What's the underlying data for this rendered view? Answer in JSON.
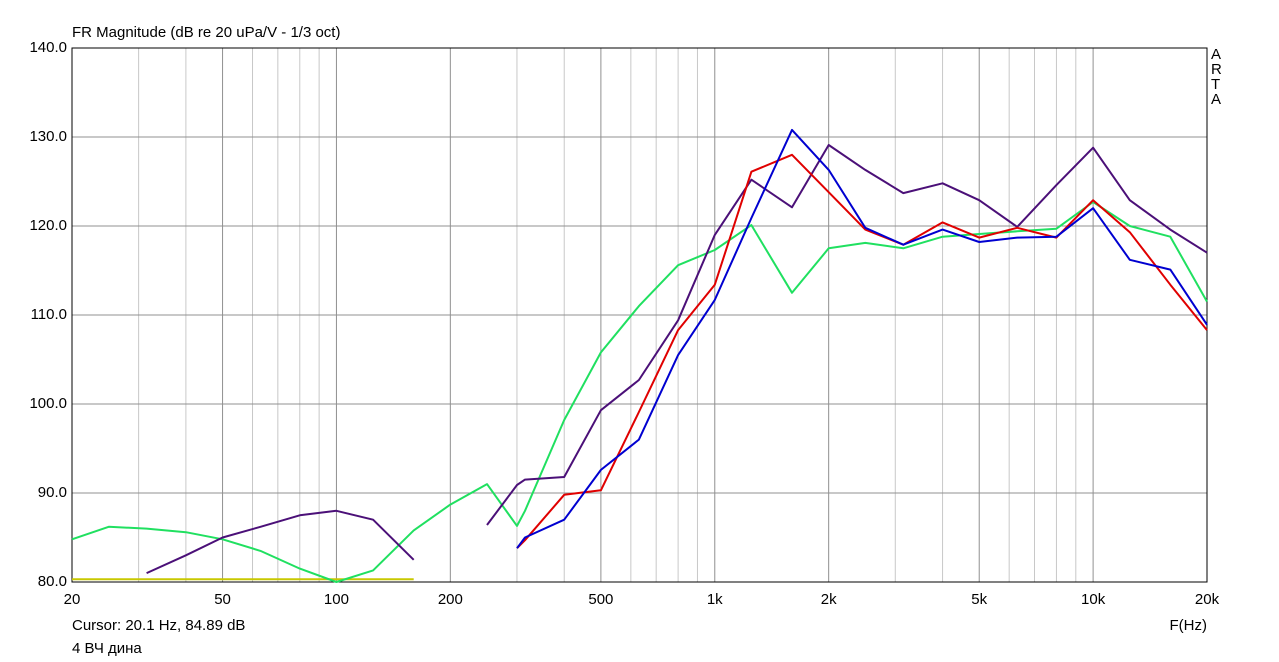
{
  "chart_data": {
    "type": "line",
    "title": "FR Magnitude (dB re 20 uPa/V - 1/3 oct)",
    "side_label": "ARTA",
    "cursor_text": "Cursor: 20.1 Hz, 84.89 dB",
    "x_label": "F(Hz)",
    "footer": "4 ВЧ дина",
    "xscale": "log",
    "grid": true,
    "x": [
      20,
      25,
      31.5,
      40,
      50,
      63,
      80,
      100,
      125,
      160,
      200,
      250,
      300,
      315,
      400,
      500,
      630,
      800,
      1000,
      1250,
      1600,
      2000,
      2500,
      3150,
      4000,
      5000,
      6300,
      8000,
      10000,
      12500,
      16000,
      20000
    ],
    "xlim": [
      20,
      20000
    ],
    "ylim": [
      80,
      140
    ],
    "xticks": [
      20,
      50,
      100,
      200,
      500,
      {
        "value": 1000,
        "label": "1k"
      },
      {
        "value": 2000,
        "label": "2k"
      },
      {
        "value": 5000,
        "label": "5k"
      },
      {
        "value": 10000,
        "label": "10k"
      },
      {
        "value": 20000,
        "label": "20k"
      }
    ],
    "xgrid_minor": [
      30,
      40,
      60,
      70,
      80,
      90,
      300,
      400,
      600,
      700,
      800,
      900,
      3000,
      4000,
      6000,
      7000,
      8000,
      9000
    ],
    "yticks": [
      {
        "value": 80,
        "label": "80.0"
      },
      {
        "value": 90,
        "label": "90.0"
      },
      {
        "value": 100,
        "label": "100.0"
      },
      {
        "value": 110,
        "label": "110.0"
      },
      {
        "value": 120,
        "label": "120.0"
      },
      {
        "value": 130,
        "label": "130.0"
      },
      {
        "value": 140,
        "label": "140.0"
      }
    ],
    "series": [
      {
        "color": "#c8c800",
        "values": [
          80.3,
          80.3,
          80.3,
          80.3,
          80.3,
          80.3,
          80.3,
          80.3,
          80.3,
          80.3,
          null,
          null,
          null,
          null,
          null,
          null,
          null,
          null,
          null,
          null,
          null,
          null,
          null,
          null,
          null,
          null,
          null,
          null,
          null,
          null,
          null,
          null
        ]
      },
      {
        "color": "#20e060",
        "values": [
          84.8,
          86.2,
          86,
          85.6,
          84.8,
          83.5,
          81.5,
          80,
          81.3,
          85.8,
          88.7,
          91,
          86.3,
          88,
          98.2,
          105.8,
          111,
          115.6,
          117.3,
          120.1,
          112.5,
          117.5,
          118.1,
          117.5,
          118.8,
          119.1,
          119.4,
          119.7,
          122.7,
          120,
          118.8,
          111.5
        ]
      },
      {
        "color": "#4b1078",
        "values": [
          null,
          null,
          81,
          83,
          85,
          86.2,
          87.5,
          88,
          87,
          82.5,
          null,
          86.4,
          90.9,
          91.5,
          91.8,
          99.3,
          102.7,
          109.4,
          119,
          125.2,
          122.1,
          129.1,
          126.3,
          123.7,
          124.8,
          122.9,
          119.9,
          124.6,
          128.8,
          122.9,
          119.6,
          117
        ]
      },
      {
        "color": "#e00000",
        "values": [
          null,
          null,
          null,
          null,
          null,
          null,
          null,
          null,
          null,
          null,
          null,
          null,
          83.8,
          84.7,
          89.8,
          90.3,
          99.1,
          108.3,
          113.4,
          126.1,
          128,
          123.8,
          119.6,
          117.9,
          120.4,
          118.7,
          119.8,
          118.7,
          122.9,
          119.3,
          113.4,
          108.3
        ]
      },
      {
        "color": "#0000d0",
        "values": [
          null,
          null,
          null,
          null,
          null,
          null,
          null,
          null,
          null,
          null,
          null,
          null,
          83.8,
          85,
          87,
          92.6,
          96,
          105.5,
          111.7,
          120.9,
          130.8,
          126.3,
          119.8,
          117.9,
          119.6,
          118.2,
          118.7,
          118.8,
          122,
          116.2,
          115.1,
          108.9
        ]
      }
    ]
  }
}
